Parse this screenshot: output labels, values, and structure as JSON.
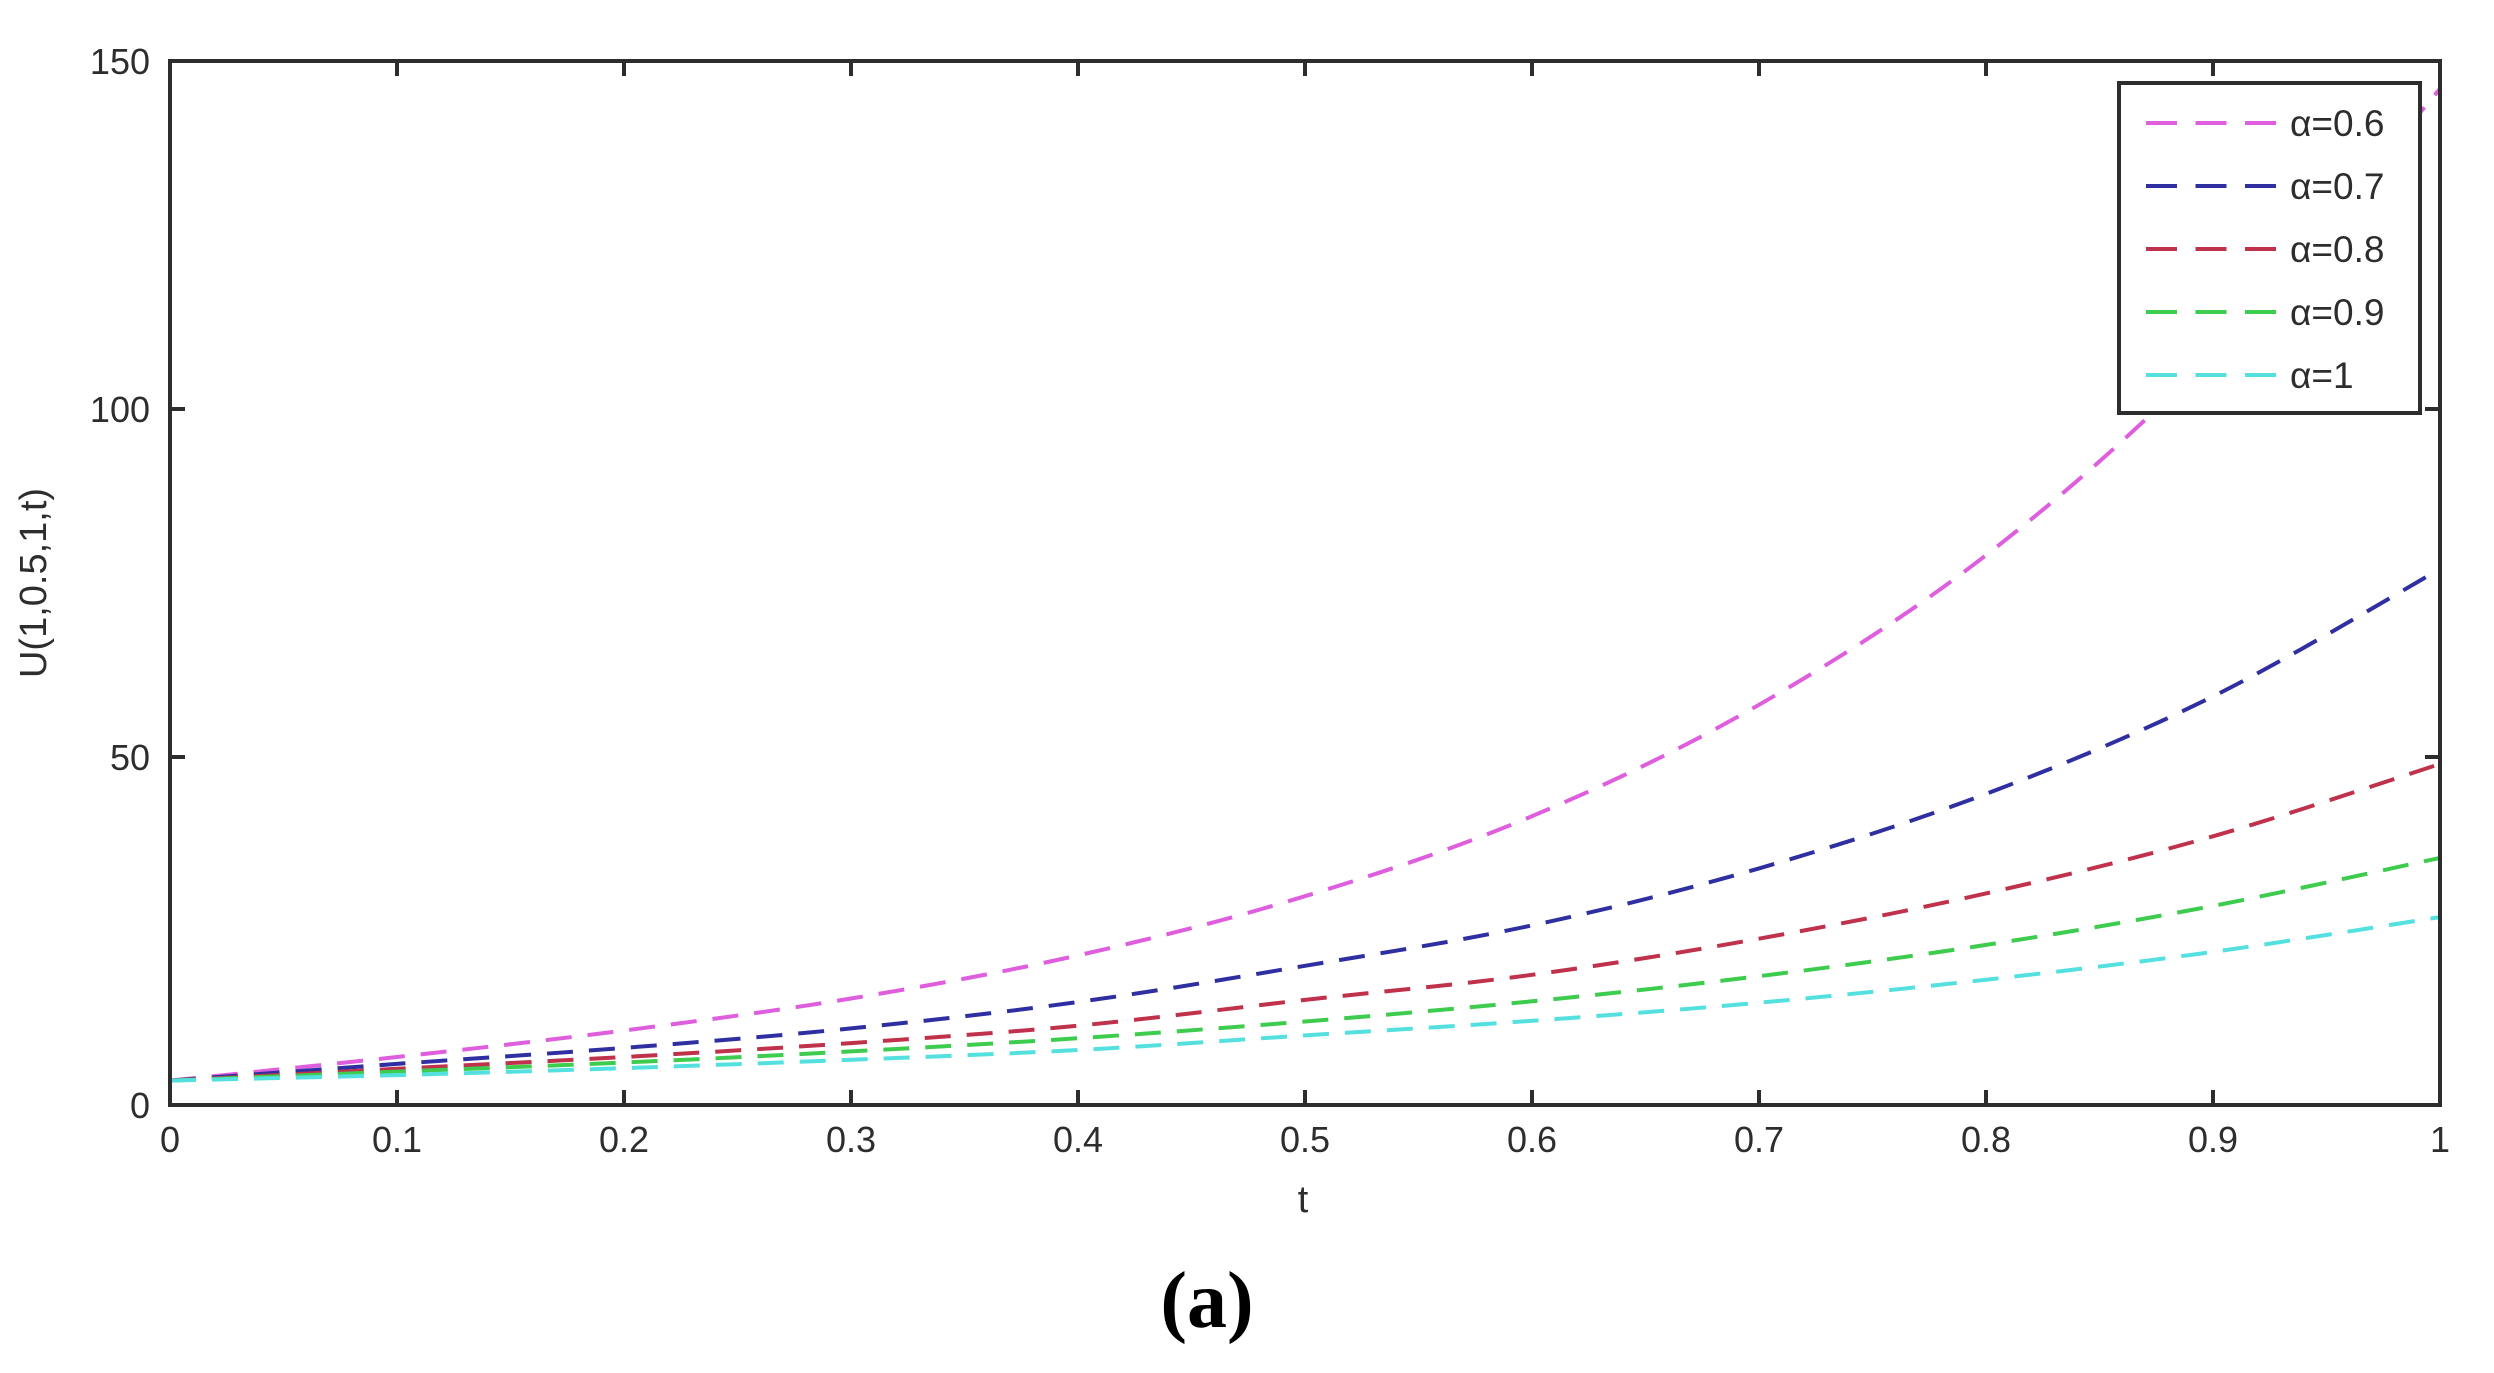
{
  "figure": {
    "caption": "(a)",
    "background": "#ffffff"
  },
  "chart_data": {
    "type": "line",
    "title": "",
    "xlabel": "t",
    "ylabel": "U(1,0.5,1,t)",
    "xlim": [
      0,
      1
    ],
    "ylim": [
      0,
      150
    ],
    "grid": false,
    "line_style": "dashed",
    "legend_position": "top-right",
    "axis_color": "#2d2d2d",
    "x_ticks": [
      0,
      0.1,
      0.2,
      0.3,
      0.4,
      0.5,
      0.6,
      0.7,
      0.8,
      0.9,
      1
    ],
    "x_tick_labels": [
      "0",
      "0.1",
      "0.2",
      "0.3",
      "0.4",
      "0.5",
      "0.6",
      "0.7",
      "0.8",
      "0.9",
      "1"
    ],
    "y_ticks": [
      0,
      50,
      100,
      150
    ],
    "y_tick_labels": [
      "0",
      "50",
      "100",
      "150"
    ],
    "x": [
      0,
      0.1,
      0.2,
      0.3,
      0.4,
      0.5,
      0.6,
      0.7,
      0.8,
      0.9,
      1
    ],
    "series": [
      {
        "name": "α=0.6",
        "color": "#de5ede",
        "values": [
          3.5,
          6.9,
          10.7,
          15.3,
          21.5,
          30,
          41.5,
          57.5,
          79,
          108,
          146
        ]
      },
      {
        "name": "α=0.7",
        "color": "#2f2fa2",
        "values": [
          3.5,
          5.9,
          8.2,
          11,
          14.8,
          20,
          25.8,
          34,
          44.7,
          58.7,
          77
        ]
      },
      {
        "name": "α=0.8",
        "color": "#c0314b",
        "values": [
          3.5,
          5.2,
          6.9,
          8.9,
          11.4,
          15.1,
          18.7,
          23.9,
          30.4,
          38.6,
          49
        ]
      },
      {
        "name": "α=0.9",
        "color": "#3ecc4e",
        "values": [
          3.5,
          4.8,
          6.1,
          7.7,
          9.6,
          12,
          14.9,
          18.5,
          23,
          28.6,
          35.5
        ]
      },
      {
        "name": "α=1",
        "color": "#55e0e0",
        "values": [
          3.5,
          4.3,
          5.3,
          6.5,
          7.9,
          10,
          12.1,
          14.7,
          18,
          22,
          27
        ]
      }
    ]
  }
}
